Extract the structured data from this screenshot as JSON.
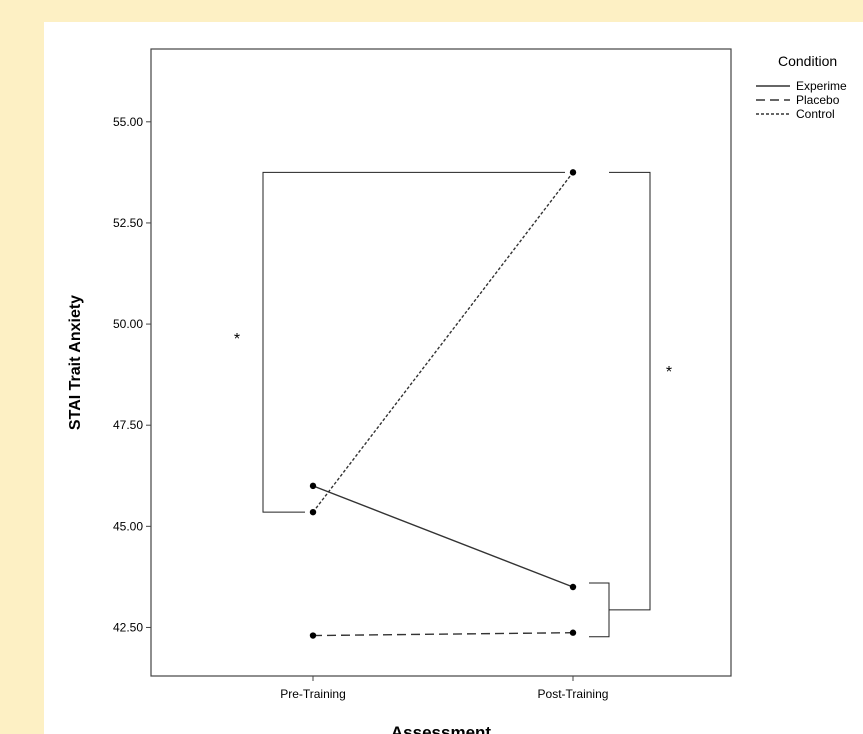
{
  "chart_data": {
    "type": "line",
    "xlabel": "Assessment",
    "ylabel": "STAI Trait Anxiety",
    "categories": [
      "Pre-Training",
      "Post-Training"
    ],
    "ylim": [
      41.3,
      56.8
    ],
    "yticks": [
      42.5,
      45.0,
      47.5,
      50.0,
      52.5,
      55.0
    ],
    "ytick_labels": [
      "42.50",
      "45.00",
      "47.50",
      "50.00",
      "52.50",
      "55.00"
    ],
    "grid": false,
    "legend": {
      "title": "Condition",
      "placement": "top-right, outside plot"
    },
    "series": [
      {
        "name": "Experime",
        "style": "solid",
        "values": [
          46.0,
          43.5
        ]
      },
      {
        "name": "Placebo",
        "style": "dashed",
        "values": [
          42.3,
          42.37
        ]
      },
      {
        "name": "Control",
        "style": "dotted",
        "values": [
          45.35,
          53.75
        ]
      }
    ],
    "annotations": [
      {
        "text": "*",
        "meaning": "significance bracket between Control and Experimental at Pre-Training and Post-Training, left side"
      },
      {
        "text": "*",
        "meaning": "significance bracket between Control and Experimental/Placebo at Post-Training, right side"
      }
    ]
  }
}
